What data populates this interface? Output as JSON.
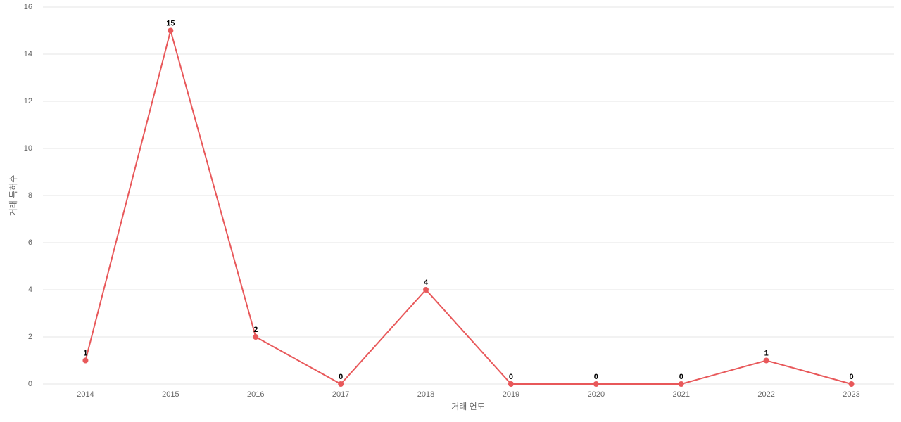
{
  "chart_data": {
    "type": "line",
    "x_label": "거래 연도",
    "y_label": "거래 특허수",
    "categories": [
      "2014",
      "2015",
      "2016",
      "2017",
      "2018",
      "2019",
      "2020",
      "2021",
      "2022",
      "2023"
    ],
    "series": [
      {
        "name": "거래 특허수",
        "color": "#e8585a",
        "values": [
          1,
          15,
          2,
          0,
          4,
          0,
          0,
          0,
          1,
          0
        ]
      }
    ],
    "ylim": [
      0,
      16
    ],
    "yticks": [
      0,
      2,
      4,
      6,
      8,
      10,
      12,
      14,
      16
    ],
    "grid": true
  }
}
